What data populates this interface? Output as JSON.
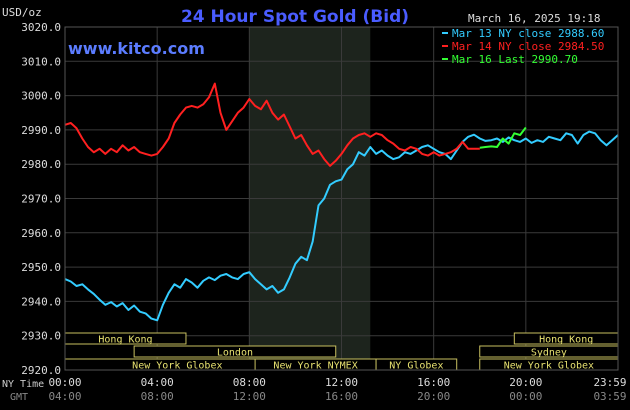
{
  "header": {
    "unit": "USD/oz",
    "title": "24 Hour Spot Gold (Bid)",
    "datetime": "March 16, 2025 19:18",
    "site": "www.kitco.com"
  },
  "legend": [
    {
      "label": "Mar 13 NY close 2988.60",
      "color": "#33ccff"
    },
    {
      "label": "Mar 14 NY close 2984.50",
      "color": "#ff2020"
    },
    {
      "label": "Mar 16 Last 2990.70",
      "color": "#33ff33"
    }
  ],
  "axis_labels": {
    "ny_time": "NY Time",
    "gmt": "GMT"
  },
  "sessions": [
    {
      "label": "Hong Kong",
      "x0": 0.0,
      "x1": 5.25,
      "row": 0
    },
    {
      "label": "London",
      "x0": 3.0,
      "x1": 11.75,
      "row": 1
    },
    {
      "label": "New York Globex",
      "x0": 0.0,
      "x1": 9.75,
      "row": 2
    },
    {
      "label": "New York NYMEX",
      "x0": 8.25,
      "x1": 13.5,
      "row": 2
    },
    {
      "label": "NY Globex",
      "x0": 13.5,
      "x1": 17.0,
      "row": 2
    },
    {
      "label": "Hong Kong",
      "x0": 19.5,
      "x1": 24.0,
      "row": 0
    },
    {
      "label": "Sydney",
      "x0": 18.0,
      "x1": 24.0,
      "row": 1
    },
    {
      "label": "New York Globex",
      "x0": 18.0,
      "x1": 24.0,
      "row": 2
    }
  ],
  "chart_data": {
    "type": "line",
    "title": "24 Hour Spot Gold (Bid)",
    "ylabel": "USD/oz",
    "xlim": [
      0,
      24
    ],
    "ylim": [
      2920,
      3020
    ],
    "yticks": [
      2920,
      2930,
      2940,
      2950,
      2960,
      2970,
      2980,
      2990,
      3000,
      3010,
      3020
    ],
    "ytick_labels": [
      "2920.0",
      "2930.0",
      "2940.0",
      "2950.0",
      "2960.0",
      "2970.0",
      "2980.0",
      "2990.0",
      "3000.0",
      "3010.0",
      "3020.0"
    ],
    "xticks": [
      0,
      4,
      8,
      12,
      16,
      20,
      24
    ],
    "xtick_labels_ny": [
      "00:00",
      "04:00",
      "08:00",
      "12:00",
      "16:00",
      "20:00",
      "23:59"
    ],
    "xtick_labels_gmt": [
      "04:00",
      "08:00",
      "12:00",
      "16:00",
      "20:00",
      "00:00",
      "03:59"
    ],
    "shaded_region": [
      8.0,
      13.25
    ],
    "grid": true,
    "legend_position": "top-right",
    "series": [
      {
        "name": "Mar 13 NY close 2988.60",
        "color": "#33ccff",
        "x": [
          0,
          0.25,
          0.5,
          0.75,
          1,
          1.25,
          1.5,
          1.75,
          2,
          2.25,
          2.5,
          2.75,
          3,
          3.25,
          3.5,
          3.75,
          4,
          4.25,
          4.5,
          4.75,
          5,
          5.25,
          5.5,
          5.75,
          6,
          6.25,
          6.5,
          6.75,
          7,
          7.25,
          7.5,
          7.75,
          8,
          8.25,
          8.5,
          8.75,
          9,
          9.25,
          9.5,
          9.75,
          10,
          10.25,
          10.5,
          10.75,
          11,
          11.25,
          11.5,
          11.75,
          12,
          12.25,
          12.5,
          12.75,
          13,
          13.25,
          13.5,
          13.75,
          14,
          14.25,
          14.5,
          14.75,
          15,
          15.25,
          15.5,
          15.75,
          16,
          16.25,
          16.5,
          16.75,
          17,
          17.25,
          17.5,
          17.75,
          18,
          18.25,
          18.5,
          18.75,
          19,
          19.25,
          19.5,
          19.75,
          20,
          20.25,
          20.5,
          20.75,
          21,
          21.25,
          21.5,
          21.75,
          22,
          22.25,
          22.5,
          22.75,
          23,
          23.25,
          23.5,
          23.75,
          24
        ],
        "y": [
          2946.5,
          2945.8,
          2944.5,
          2945.0,
          2943.5,
          2942.2,
          2940.5,
          2939.0,
          2939.8,
          2938.5,
          2939.5,
          2937.5,
          2938.8,
          2937.0,
          2936.5,
          2935.0,
          2934.5,
          2939.0,
          2942.5,
          2945.0,
          2944.0,
          2946.5,
          2945.5,
          2944.0,
          2946.0,
          2947.0,
          2946.2,
          2947.5,
          2948.0,
          2947.0,
          2946.5,
          2948.0,
          2948.5,
          2946.5,
          2945.0,
          2943.5,
          2944.5,
          2942.5,
          2943.5,
          2947.0,
          2951.0,
          2953.0,
          2952.0,
          2957.5,
          2968.0,
          2970.0,
          2974.0,
          2975.0,
          2975.5,
          2978.5,
          2980.0,
          2983.5,
          2982.5,
          2985.0,
          2983.0,
          2984.0,
          2982.5,
          2981.5,
          2982.0,
          2983.5,
          2983.0,
          2984.0,
          2985.0,
          2985.5,
          2984.5,
          2983.5,
          2983.0,
          2981.5,
          2984.0,
          2986.5,
          2988.0,
          2988.6,
          2987.5,
          2986.8,
          2987.0,
          2987.5,
          2986.5,
          2987.8,
          2987.0,
          2986.5,
          2987.5,
          2986.2,
          2987.0,
          2986.5,
          2988.0,
          2987.5,
          2987.0,
          2989.0,
          2988.5,
          2986.0,
          2988.5,
          2989.5,
          2989.0,
          2987.0,
          2985.5,
          2987.0,
          2988.5
        ]
      },
      {
        "name": "Mar 14 NY close 2984.50",
        "color": "#ff2020",
        "x": [
          0,
          0.25,
          0.5,
          0.75,
          1,
          1.25,
          1.5,
          1.75,
          2,
          2.25,
          2.5,
          2.75,
          3,
          3.25,
          3.5,
          3.75,
          4,
          4.25,
          4.5,
          4.75,
          5,
          5.25,
          5.5,
          5.75,
          6,
          6.25,
          6.5,
          6.75,
          7,
          7.25,
          7.5,
          7.75,
          8,
          8.25,
          8.5,
          8.75,
          9,
          9.25,
          9.5,
          9.75,
          10,
          10.25,
          10.5,
          10.75,
          11,
          11.25,
          11.5,
          11.75,
          12,
          12.25,
          12.5,
          12.75,
          13,
          13.25,
          13.5,
          13.75,
          14,
          14.25,
          14.5,
          14.75,
          15,
          15.25,
          15.5,
          15.75,
          16,
          16.25,
          16.5,
          16.75,
          17,
          17.25,
          17.5,
          17.75,
          18
        ],
        "y": [
          2991.5,
          2992.0,
          2990.5,
          2987.5,
          2985.0,
          2983.5,
          2984.5,
          2983.0,
          2984.5,
          2983.5,
          2985.5,
          2984.0,
          2985.0,
          2983.5,
          2983.0,
          2982.5,
          2983.0,
          2985.0,
          2987.5,
          2992.0,
          2994.5,
          2996.5,
          2997.0,
          2996.5,
          2997.5,
          2999.5,
          3003.5,
          2995.0,
          2990.0,
          2992.5,
          2995.0,
          2996.5,
          2999.0,
          2997.0,
          2996.0,
          2998.5,
          2995.0,
          2993.0,
          2994.5,
          2991.0,
          2987.5,
          2988.5,
          2985.5,
          2983.0,
          2984.0,
          2981.5,
          2979.5,
          2981.0,
          2983.0,
          2985.5,
          2987.5,
          2988.5,
          2989.0,
          2988.0,
          2989.0,
          2988.5,
          2987.0,
          2986.0,
          2984.5,
          2984.0,
          2985.0,
          2984.5,
          2983.0,
          2982.5,
          2983.5,
          2982.5,
          2983.0,
          2983.5,
          2984.5,
          2986.5,
          2984.5,
          2984.5,
          2984.5
        ]
      },
      {
        "name": "Mar 16 Last 2990.70",
        "color": "#33ff33",
        "x": [
          18.0,
          18.25,
          18.5,
          18.75,
          19.0,
          19.25,
          19.5,
          19.75,
          20.0
        ],
        "y": [
          2984.8,
          2985.0,
          2985.2,
          2985.0,
          2987.5,
          2986.0,
          2989.0,
          2988.5,
          2990.7
        ]
      }
    ]
  }
}
